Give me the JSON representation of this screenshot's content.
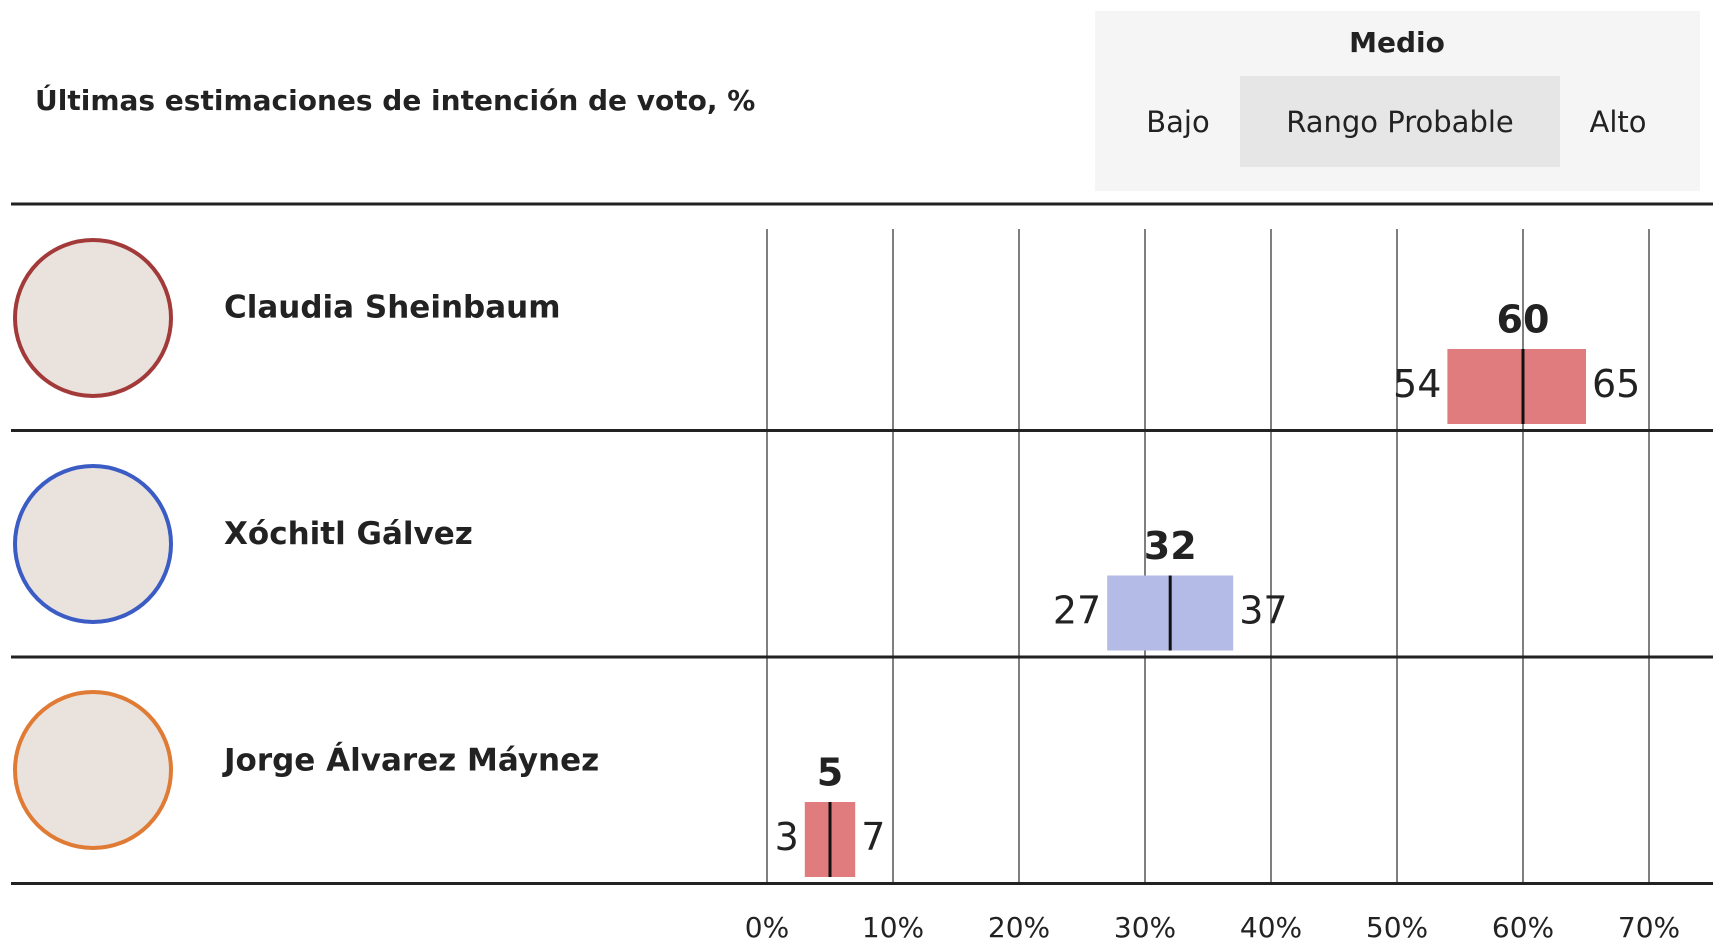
{
  "chart_data": {
    "type": "range",
    "title": "Últimas estimaciones de intención de voto, %",
    "categories": [
      "Claudia Sheinbaum",
      "Xóchitl Gálvez",
      "Jorge Álvarez Máynez"
    ],
    "colors": [
      "#e07b7e",
      "#b4bbe6",
      "#e07b7e"
    ],
    "range_label": "Rango Probable",
    "series": [
      {
        "name": "Bajo",
        "values": [
          54,
          27,
          3
        ]
      },
      {
        "name": "Medio",
        "values": [
          60,
          32,
          5
        ]
      },
      {
        "name": "Alto",
        "values": [
          65,
          37,
          7
        ]
      }
    ],
    "xlim": [
      0,
      70
    ],
    "xticks": [
      {
        "value": 0,
        "label": "0%"
      },
      {
        "value": 10,
        "label": "10%"
      },
      {
        "value": 20,
        "label": "20%"
      },
      {
        "value": 30,
        "label": "30%"
      },
      {
        "value": 40,
        "label": "40%"
      },
      {
        "value": 50,
        "label": "50%"
      },
      {
        "value": 60,
        "label": "60%"
      },
      {
        "value": 70,
        "label": "70%"
      }
    ],
    "grid": true
  }
}
